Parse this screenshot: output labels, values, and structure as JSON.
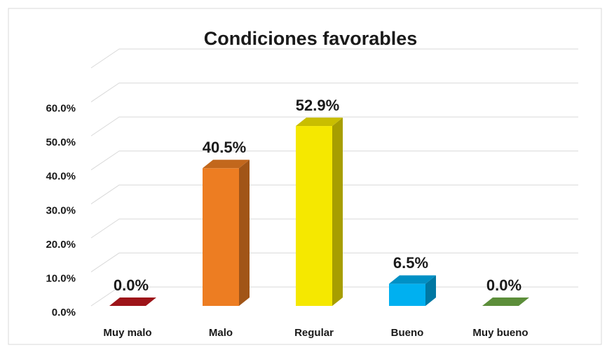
{
  "chart_data": {
    "type": "bar3d",
    "title": "Condiciones favorables",
    "categories": [
      "Muy malo",
      "Malo",
      "Regular",
      "Bueno",
      "Muy bueno"
    ],
    "values": [
      0,
      40.5,
      52.9,
      6.5,
      0
    ],
    "value_labels": [
      "0.0%",
      "40.5%",
      "52.9%",
      "6.5%",
      "0.0%"
    ],
    "colors": [
      "#c0181f",
      "#ed7d22",
      "#f5e800",
      "#00b0f0",
      "#70ad47"
    ],
    "ylim": [
      0,
      70
    ],
    "yticks": [
      {
        "value": 0,
        "label": "0.0%"
      },
      {
        "value": 10,
        "label": "10.0%"
      },
      {
        "value": 20,
        "label": "20.0%"
      },
      {
        "value": 30,
        "label": "30.0%"
      },
      {
        "value": 40,
        "label": "40.0%"
      },
      {
        "value": 50,
        "label": "50.0%"
      },
      {
        "value": 60,
        "label": "60.0%"
      }
    ],
    "grid": true
  }
}
